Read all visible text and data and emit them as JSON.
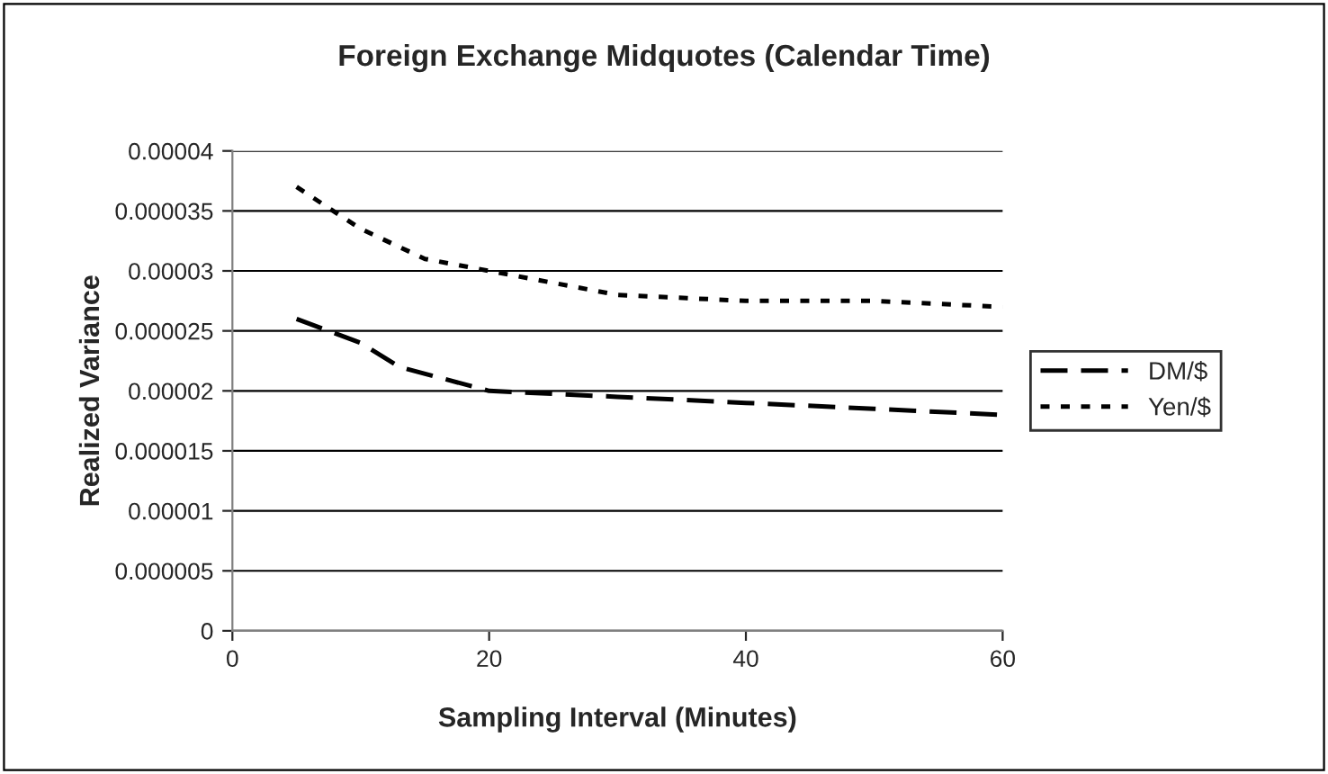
{
  "chart_data": {
    "type": "line",
    "title": "Foreign Exchange Midquotes (Calendar Time)",
    "xlabel": "Sampling Interval (Minutes)",
    "ylabel": "Realized Variance",
    "series": [
      {
        "name": "DM/$",
        "color": "#000000",
        "line_style": "dashed",
        "x": [
          5,
          10,
          13,
          20,
          30,
          40,
          50,
          60
        ],
        "values": [
          2.6e-05,
          2.4e-05,
          2.2e-05,
          2e-05,
          1.95e-05,
          1.9e-05,
          1.85e-05,
          1.8e-05
        ]
      },
      {
        "name": "Yen/$",
        "color": "#000000",
        "line_style": "dotted",
        "x": [
          5,
          10,
          15,
          20,
          30,
          40,
          50,
          60
        ],
        "values": [
          3.7e-05,
          3.35e-05,
          3.1e-05,
          3e-05,
          2.8e-05,
          2.75e-05,
          2.75e-05,
          2.7e-05
        ]
      }
    ],
    "xlim": [
      0,
      60
    ],
    "xticks": [
      0,
      20,
      40,
      60
    ],
    "ylim": [
      0,
      4e-05
    ],
    "yticks": [
      {
        "value": 0,
        "label": "0"
      },
      {
        "value": 5e-06,
        "label": "0.000005"
      },
      {
        "value": 1e-05,
        "label": "0.00001"
      },
      {
        "value": 1.5e-05,
        "label": "0.000015"
      },
      {
        "value": 2e-05,
        "label": "0.00002"
      },
      {
        "value": 2.5e-05,
        "label": "0.000025"
      },
      {
        "value": 3e-05,
        "label": "0.00003"
      },
      {
        "value": 3.5e-05,
        "label": "0.000035"
      },
      {
        "value": 4e-05,
        "label": "0.00004"
      }
    ],
    "grid": "y",
    "legend": "right",
    "marker": "none"
  }
}
